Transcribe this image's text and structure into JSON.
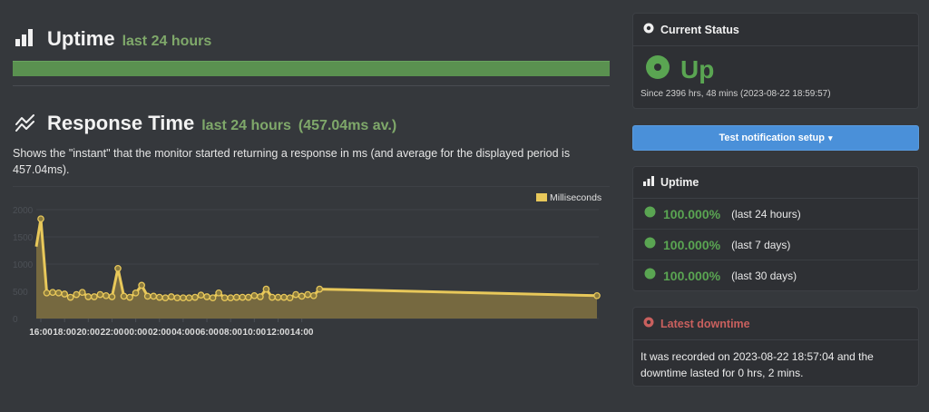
{
  "uptime_section": {
    "title": "Uptime",
    "subtitle": "last 24 hours",
    "bar_color": "#5a9150",
    "icon": "bar-chart-icon"
  },
  "response_section": {
    "title": "Response Time",
    "subtitle": "last 24 hours",
    "average": "(457.04ms av.)",
    "description": "Shows the \"instant\" that the monitor started returning a response in ms (and average for the displayed period is 457.04ms).",
    "icon": "line-chart-icon"
  },
  "chart_data": {
    "type": "area",
    "title": "Response Time",
    "xlabel": "",
    "ylabel": "Milliseconds",
    "legend": [
      "Milliseconds"
    ],
    "legend_position": "top-right",
    "grid": true,
    "ylim": [
      0,
      2000
    ],
    "y_ticks": [
      "0",
      "500",
      "1000",
      "1500",
      "2000"
    ],
    "x_ticks": [
      "16:00",
      "18:00",
      "20:00",
      "22:00",
      "00:00",
      "02:00",
      "04:00",
      "06:00",
      "08:00",
      "10:00",
      "12:00",
      "14:00"
    ],
    "color": "#e8c85a",
    "fill_color": "#7a6c40",
    "x": [
      "15:50",
      "16:00",
      "16:30",
      "17:00",
      "17:30",
      "18:00",
      "18:30",
      "19:00",
      "19:30",
      "20:00",
      "20:30",
      "21:00",
      "21:30",
      "22:00",
      "22:30",
      "23:00",
      "23:30",
      "00:00",
      "00:30",
      "01:00",
      "01:30",
      "02:00",
      "02:30",
      "03:00",
      "03:30",
      "04:00",
      "04:30",
      "05:00",
      "05:30",
      "06:00",
      "06:30",
      "07:00",
      "07:30",
      "08:00",
      "08:30",
      "09:00",
      "09:30",
      "10:00",
      "10:30",
      "11:00",
      "11:30",
      "12:00",
      "12:30",
      "13:00",
      "13:30",
      "14:00",
      "14:30",
      "15:00",
      "15:30",
      "15:40"
    ],
    "values": [
      1320,
      1830,
      470,
      480,
      470,
      450,
      390,
      440,
      480,
      400,
      400,
      440,
      420,
      400,
      920,
      410,
      390,
      470,
      610,
      410,
      410,
      390,
      380,
      400,
      380,
      380,
      380,
      390,
      430,
      400,
      380,
      470,
      380,
      380,
      390,
      390,
      390,
      420,
      400,
      540,
      390,
      390,
      390,
      380,
      440,
      410,
      440,
      420,
      540,
      420
    ]
  },
  "current_status": {
    "header": "Current Status",
    "status": "Up",
    "since": "Since 2396 hrs, 48 mins (2023-08-22 18:59:57)",
    "color": "#5aa552"
  },
  "notify_button": {
    "label": "Test notification setup",
    "caret": "▾",
    "color": "#4a90d9"
  },
  "uptime_panel": {
    "header": "Uptime",
    "rows": [
      {
        "percent": "100.000%",
        "period": "(last 24 hours)"
      },
      {
        "percent": "100.000%",
        "period": "(last 7 days)"
      },
      {
        "percent": "100.000%",
        "period": "(last 30 days)"
      }
    ]
  },
  "latest_downtime": {
    "header": "Latest downtime",
    "text": "It was recorded on 2023-08-22 18:57:04 and the downtime lasted for 0 hrs, 2 mins.",
    "color": "#c9605e"
  }
}
